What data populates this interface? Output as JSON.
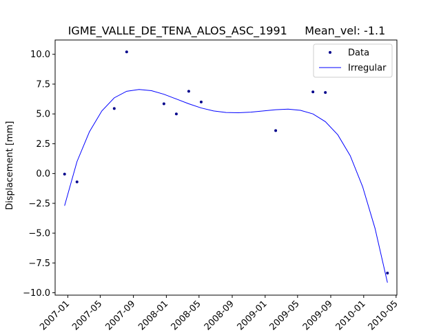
{
  "chart_data": {
    "type": "scatter",
    "title": "IGME_VALLE_DE_TENA_ALOS_ASC_1991     Mean_vel: -1.1",
    "xlabel": "",
    "ylabel": "Displacement [mm]",
    "xlim": [
      "2006-11-15",
      "2010-05-04"
    ],
    "ylim": [
      -10.2,
      11.2
    ],
    "x_ticks": [
      "2007-01",
      "2007-05",
      "2007-09",
      "2008-01",
      "2008-05",
      "2008-09",
      "2009-01",
      "2009-05",
      "2009-09",
      "2010-01",
      "2010-05"
    ],
    "y_ticks": [
      -10.0,
      -7.5,
      -5.0,
      -2.5,
      0.0,
      2.5,
      5.0,
      7.5,
      10.0
    ],
    "legend_position": "top-right",
    "grid": false,
    "series": [
      {
        "name": "Data",
        "kind": "scatter",
        "color": "#00008b",
        "points": [
          {
            "x": "2006-12-20",
            "y": -0.05
          },
          {
            "x": "2007-02-04",
            "y": -0.7
          },
          {
            "x": "2007-06-22",
            "y": 5.45
          },
          {
            "x": "2007-08-07",
            "y": 10.2
          },
          {
            "x": "2007-12-23",
            "y": 5.85
          },
          {
            "x": "2008-02-07",
            "y": 5.0
          },
          {
            "x": "2008-03-24",
            "y": 6.9
          },
          {
            "x": "2008-05-09",
            "y": 6.0
          },
          {
            "x": "2009-02-09",
            "y": 3.6
          },
          {
            "x": "2009-06-27",
            "y": 6.85
          },
          {
            "x": "2009-08-12",
            "y": 6.8
          },
          {
            "x": "2010-03-30",
            "y": -8.35
          }
        ]
      },
      {
        "name": "Irregular",
        "kind": "line",
        "color": "#0000ff",
        "points": [
          {
            "x": "2006-12-20",
            "y": -2.7
          },
          {
            "x": "2007-02-04",
            "y": 1.0
          },
          {
            "x": "2007-03-22",
            "y": 3.5
          },
          {
            "x": "2007-05-07",
            "y": 5.25
          },
          {
            "x": "2007-06-22",
            "y": 6.35
          },
          {
            "x": "2007-08-07",
            "y": 6.9
          },
          {
            "x": "2007-09-22",
            "y": 7.05
          },
          {
            "x": "2007-11-07",
            "y": 6.95
          },
          {
            "x": "2007-12-23",
            "y": 6.65
          },
          {
            "x": "2008-02-07",
            "y": 6.25
          },
          {
            "x": "2008-03-24",
            "y": 5.85
          },
          {
            "x": "2008-05-09",
            "y": 5.5
          },
          {
            "x": "2008-06-24",
            "y": 5.25
          },
          {
            "x": "2008-08-09",
            "y": 5.12
          },
          {
            "x": "2008-09-24",
            "y": 5.1
          },
          {
            "x": "2008-11-09",
            "y": 5.15
          },
          {
            "x": "2008-12-25",
            "y": 5.25
          },
          {
            "x": "2009-02-09",
            "y": 5.35
          },
          {
            "x": "2009-03-27",
            "y": 5.4
          },
          {
            "x": "2009-05-12",
            "y": 5.3
          },
          {
            "x": "2009-06-27",
            "y": 5.0
          },
          {
            "x": "2009-08-12",
            "y": 4.35
          },
          {
            "x": "2009-09-27",
            "y": 3.25
          },
          {
            "x": "2009-11-12",
            "y": 1.5
          },
          {
            "x": "2009-12-28",
            "y": -1.1
          },
          {
            "x": "2010-02-12",
            "y": -4.6
          },
          {
            "x": "2010-03-30",
            "y": -9.15
          }
        ]
      }
    ]
  }
}
